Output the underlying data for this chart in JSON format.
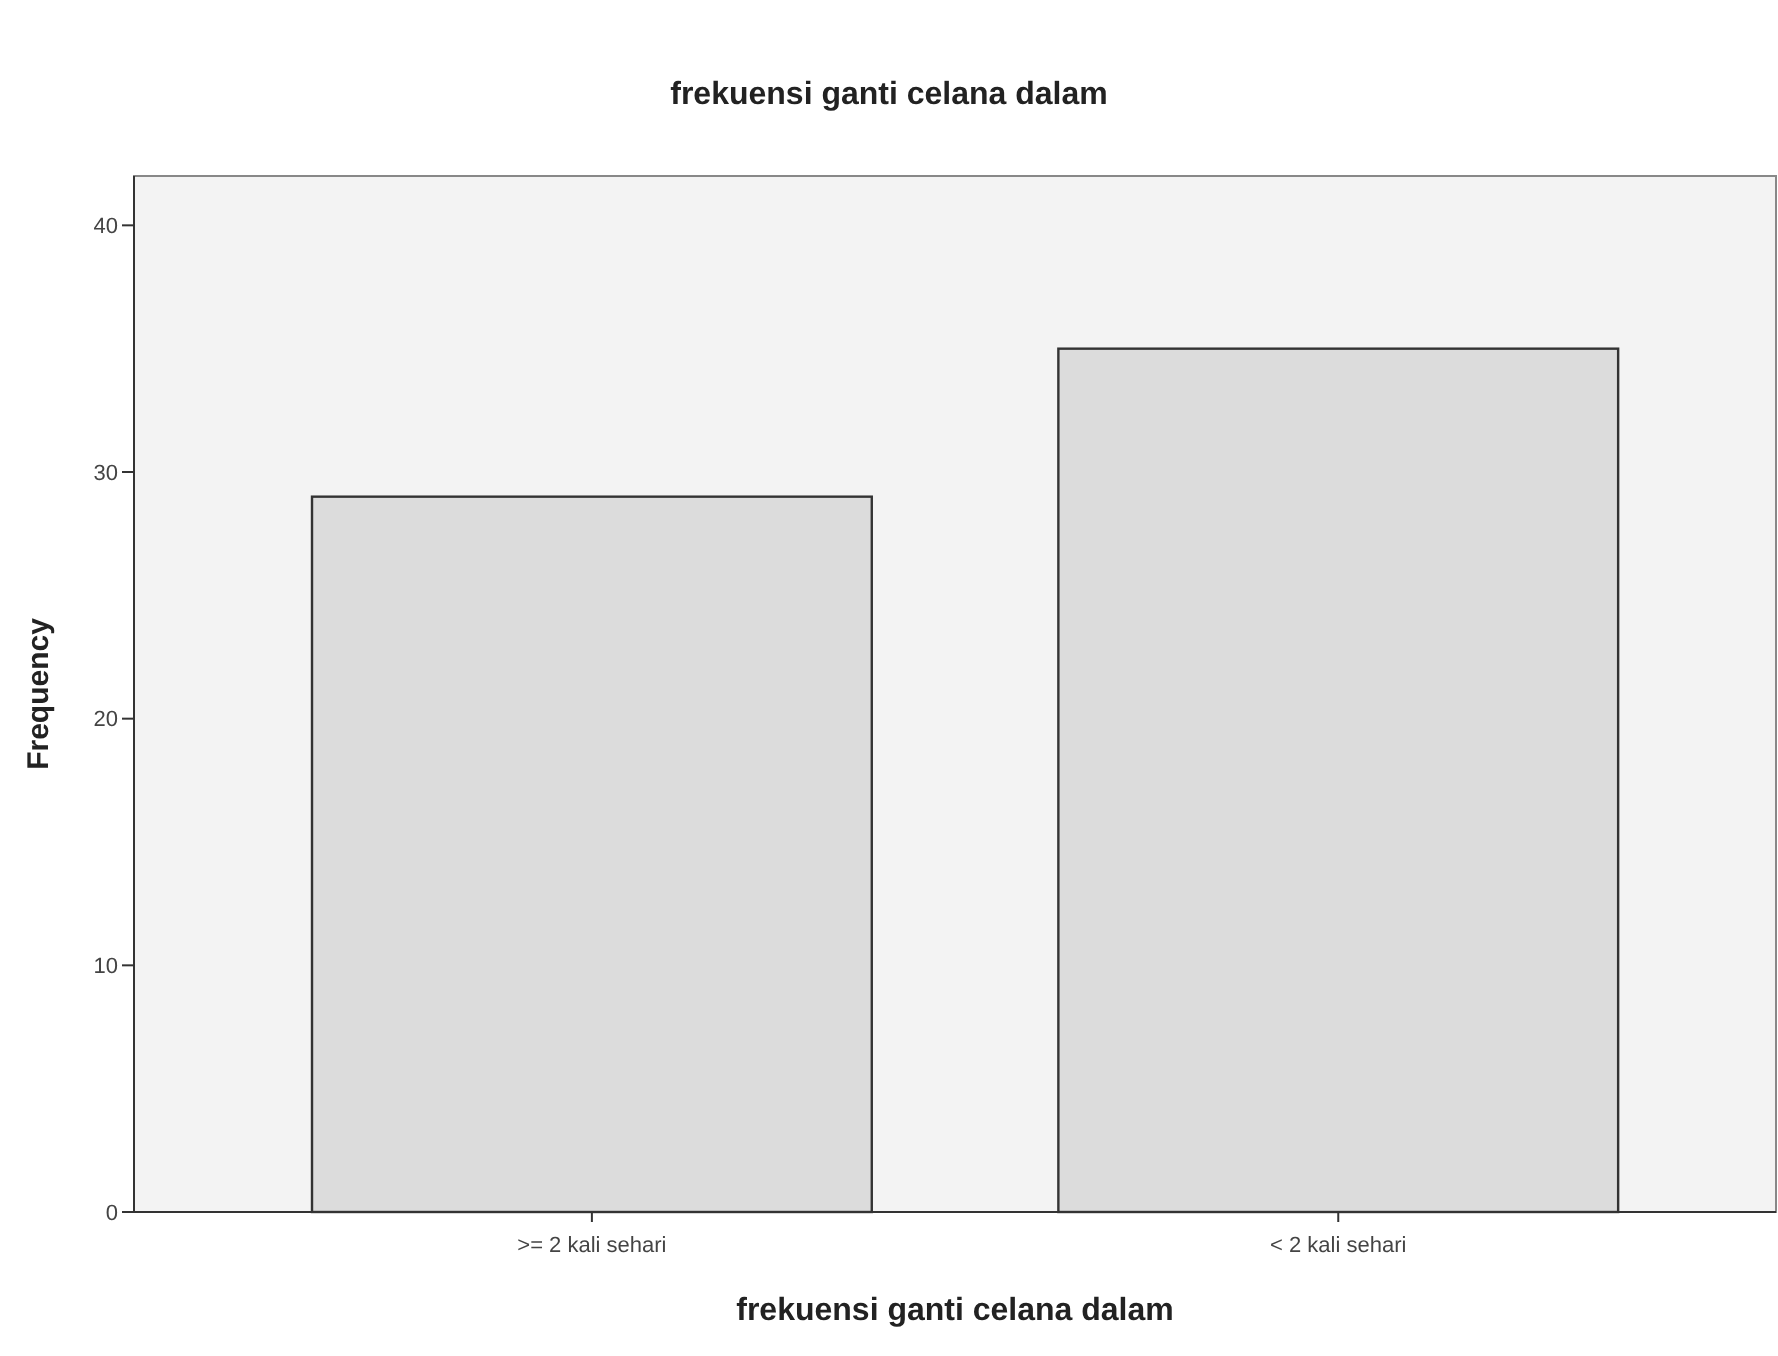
{
  "chart_data": {
    "type": "bar",
    "title": "frekuensi ganti celana dalam",
    "xlabel": "frekuensi ganti celana dalam",
    "ylabel": "Frequency",
    "categories": [
      ">= 2 kali sehari",
      "< 2 kali sehari"
    ],
    "values": [
      29,
      35
    ],
    "color": "#dcdcdc",
    "ylim": [
      0,
      42
    ],
    "yticks": [
      0,
      10,
      20,
      30,
      40
    ],
    "grid": false
  }
}
